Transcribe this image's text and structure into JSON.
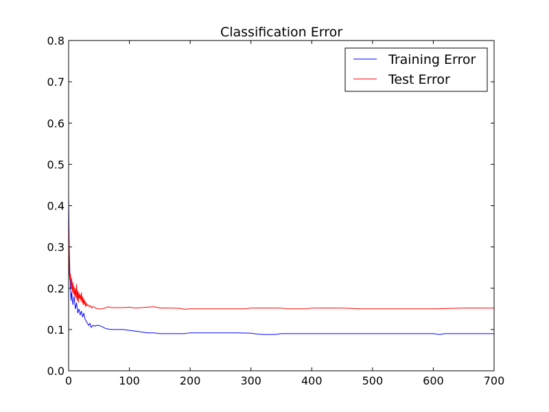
{
  "chart_data": {
    "type": "line",
    "title": "Classification Error",
    "xlabel": "",
    "ylabel": "",
    "xlim": [
      0,
      700
    ],
    "ylim": [
      0.0,
      0.8
    ],
    "xticks": [
      "0",
      "100",
      "200",
      "300",
      "400",
      "500",
      "600",
      "700"
    ],
    "yticks": [
      "0.0",
      "0.1",
      "0.2",
      "0.3",
      "0.4",
      "0.5",
      "0.6",
      "0.7",
      "0.8"
    ],
    "grid": false,
    "legend_position": "top-right",
    "series": [
      {
        "name": "Training Error",
        "color": "#0000ff",
        "x": [
          0,
          1,
          2,
          3,
          4,
          5,
          7,
          9,
          11,
          13,
          15,
          17,
          19,
          21,
          23,
          25,
          27,
          29,
          31,
          33,
          35,
          37,
          40,
          43,
          46,
          50,
          55,
          60,
          65,
          70,
          80,
          90,
          100,
          110,
          120,
          130,
          140,
          145,
          150,
          170,
          190,
          200,
          220,
          250,
          280,
          300,
          310,
          320,
          340,
          350,
          400,
          450,
          500,
          550,
          600,
          610,
          620,
          650,
          700
        ],
        "y": [
          0.42,
          0.3,
          0.24,
          0.2,
          0.17,
          0.19,
          0.16,
          0.18,
          0.15,
          0.165,
          0.14,
          0.15,
          0.135,
          0.145,
          0.13,
          0.14,
          0.125,
          0.12,
          0.115,
          0.11,
          0.115,
          0.105,
          0.11,
          0.108,
          0.11,
          0.11,
          0.107,
          0.103,
          0.101,
          0.1,
          0.1,
          0.1,
          0.098,
          0.096,
          0.094,
          0.092,
          0.092,
          0.091,
          0.09,
          0.09,
          0.09,
          0.092,
          0.092,
          0.092,
          0.092,
          0.091,
          0.089,
          0.088,
          0.088,
          0.09,
          0.09,
          0.09,
          0.09,
          0.09,
          0.09,
          0.088,
          0.09,
          0.09,
          0.09
        ]
      },
      {
        "name": "Test Error",
        "color": "#ff0000",
        "x": [
          0,
          1,
          2,
          3,
          4,
          5,
          6,
          7,
          8,
          9,
          10,
          11,
          12,
          13,
          14,
          15,
          16,
          17,
          18,
          19,
          20,
          21,
          22,
          23,
          24,
          25,
          26,
          27,
          28,
          29,
          30,
          32,
          34,
          36,
          38,
          40,
          43,
          46,
          50,
          55,
          60,
          65,
          70,
          80,
          90,
          100,
          110,
          120,
          140,
          145,
          150,
          170,
          185,
          190,
          200,
          250,
          290,
          300,
          350,
          360,
          390,
          400,
          450,
          480,
          500,
          600,
          650,
          700
        ],
        "y": [
          0.38,
          0.24,
          0.22,
          0.235,
          0.2,
          0.225,
          0.19,
          0.215,
          0.185,
          0.205,
          0.18,
          0.2,
          0.175,
          0.21,
          0.17,
          0.195,
          0.165,
          0.19,
          0.175,
          0.185,
          0.17,
          0.19,
          0.165,
          0.18,
          0.16,
          0.175,
          0.16,
          0.17,
          0.155,
          0.165,
          0.158,
          0.16,
          0.155,
          0.158,
          0.152,
          0.156,
          0.153,
          0.151,
          0.15,
          0.15,
          0.152,
          0.155,
          0.153,
          0.153,
          0.153,
          0.154,
          0.152,
          0.153,
          0.155,
          0.154,
          0.152,
          0.152,
          0.151,
          0.149,
          0.15,
          0.15,
          0.15,
          0.152,
          0.152,
          0.15,
          0.15,
          0.152,
          0.152,
          0.15,
          0.15,
          0.15,
          0.152,
          0.152
        ]
      }
    ]
  }
}
